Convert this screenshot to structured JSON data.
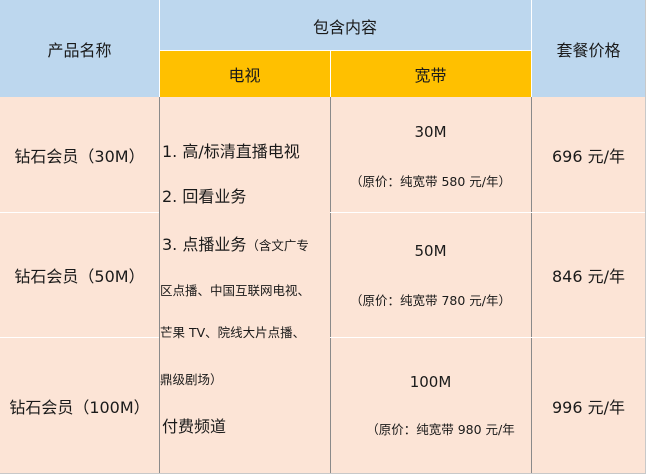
{
  "header": {
    "product_name": "产品名称",
    "contents": "包含内容",
    "tv": "电视",
    "broadband": "宽带",
    "price": "套餐价格"
  },
  "tv_contents": {
    "item1": "1. 高/标清直播电视",
    "item2": "2. 回看业务",
    "item3_main": "3. 点播业务",
    "item3_detail_a": "（含文广专",
    "item3_line2": "区点播、中国互联网电视、",
    "item3_line3": "芒果 TV、院线大片点播、",
    "item3_line4": "鼎级剧场）",
    "item4": "付费频道"
  },
  "rows": [
    {
      "name": "钻石会员（30M）",
      "speed": "30M",
      "original": "（原价：纯宽带 580 元/年）",
      "price": "696 元/年"
    },
    {
      "name": "钻石会员（50M）",
      "speed": "50M",
      "original": "（原价：纯宽带 780 元/年）",
      "price": "846 元/年"
    },
    {
      "name": "钻石会员（100M）",
      "speed": "100M",
      "original": "（原价：纯宽带 980 元/年",
      "price": "996 元/年"
    }
  ]
}
